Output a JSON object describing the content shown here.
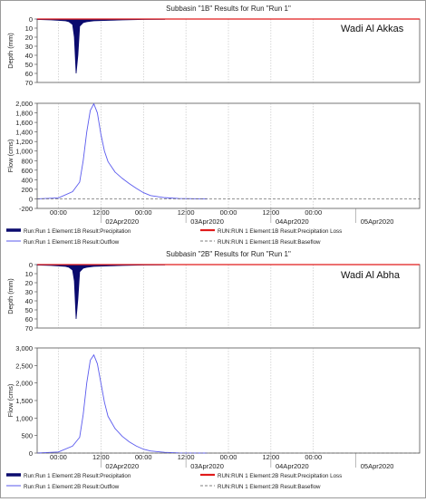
{
  "chart_data": [
    {
      "type": "line",
      "title": "Subbasin \"1B\" Results for Run \"Run 1\"",
      "annotation": "Wadi Al Akkas",
      "top_panel": {
        "ylabel": "Depth (mm)",
        "ylim": [
          0,
          70
        ],
        "inverted": true,
        "ticks": [
          "0",
          "10",
          "20",
          "30",
          "40",
          "50",
          "60",
          "70"
        ]
      },
      "bottom_panel": {
        "ylabel": "Flow (cms)",
        "ylim": [
          -200,
          2000
        ],
        "ticks": [
          "-200",
          "0",
          "200",
          "400",
          "600",
          "800",
          "1,000",
          "1,200",
          "1,400",
          "1,600",
          "1,800",
          "2,000"
        ]
      },
      "x_ticks_top": [
        "00:00",
        "12:00",
        "00:00",
        "12:00",
        "00:00",
        "12:00",
        "00:00"
      ],
      "x_ticks_bottom": [
        "02Apr2020",
        "03Apr2020",
        "04Apr2020",
        "05Apr2020"
      ],
      "x_unit": "hours since 01Apr2020 18:00",
      "series": [
        {
          "name": "Run:Run 1 Element:1B Result:Precipitation",
          "color": "#0a0a6e",
          "x": [
            0,
            4,
            6,
            8,
            9,
            10,
            10.5,
            11,
            11.5,
            12,
            13,
            14,
            16,
            20,
            24,
            30,
            36
          ],
          "values": [
            0.5,
            1,
            1.5,
            2,
            3,
            6,
            20,
            60,
            40,
            8,
            4,
            3,
            2,
            1.5,
            1,
            0.5,
            0.3
          ]
        },
        {
          "name": "RUN:RUN 1 Element:1B Result:Precipitation Loss",
          "color": "#e01b1b",
          "x": [
            0,
            60,
            108
          ],
          "values": [
            0,
            0,
            0
          ]
        },
        {
          "name": "Run:Run 1 Element:1B Result:Outflow",
          "color": "#5a5aee",
          "x": [
            0,
            6,
            10,
            12,
            13,
            14,
            15,
            16,
            17,
            18,
            19,
            20,
            22,
            24,
            26,
            28,
            30,
            32,
            36,
            40,
            44,
            48
          ],
          "values": [
            0,
            20,
            150,
            350,
            800,
            1400,
            1850,
            1990,
            1800,
            1350,
            1000,
            780,
            560,
            430,
            320,
            220,
            130,
            70,
            25,
            8,
            3,
            0
          ]
        },
        {
          "name": "RUN:RUN 1 Element:1B Result:Baseflow",
          "color": "#555555",
          "x": [
            0,
            108
          ],
          "values": [
            0,
            0
          ]
        }
      ]
    },
    {
      "type": "line",
      "title": "Subbasin \"2B\" Results for Run \"Run 1\"",
      "annotation": "Wadi Al Abha",
      "top_panel": {
        "ylabel": "Depth (mm)",
        "ylim": [
          0,
          70
        ],
        "inverted": true,
        "ticks": [
          "0",
          "10",
          "20",
          "30",
          "40",
          "50",
          "60",
          "70"
        ]
      },
      "bottom_panel": {
        "ylabel": "Flow (cms)",
        "ylim": [
          0,
          3000
        ],
        "ticks": [
          "0",
          "500",
          "1,000",
          "1,500",
          "2,000",
          "2,500",
          "3,000"
        ]
      },
      "x_ticks_top": [
        "00:00",
        "12:00",
        "00:00",
        "12:00",
        "00:00",
        "12:00",
        "00:00"
      ],
      "x_ticks_bottom": [
        "02Apr2020",
        "03Apr2020",
        "04Apr2020",
        "05Apr2020"
      ],
      "x_unit": "hours since 01Apr2020 18:00",
      "series": [
        {
          "name": "Run:Run 1 Element:2B Result:Precipitation",
          "color": "#0a0a6e",
          "x": [
            0,
            4,
            6,
            8,
            9,
            10,
            10.5,
            11,
            11.5,
            12,
            13,
            14,
            16,
            20,
            24,
            30,
            36
          ],
          "values": [
            0.5,
            1,
            1.5,
            2,
            3,
            6,
            18,
            60,
            38,
            8,
            4,
            3,
            2,
            1.5,
            1,
            0.5,
            0.3
          ]
        },
        {
          "name": "RUN:RUN 1 Element:2B Result:Precipitation Loss",
          "color": "#e01b1b",
          "x": [
            0,
            60,
            108
          ],
          "values": [
            0,
            0,
            0
          ]
        },
        {
          "name": "Run:Run 1 Element:2B Result:Outflow",
          "color": "#5a5aee",
          "x": [
            0,
            6,
            10,
            12,
            13,
            14,
            15,
            16,
            17,
            18,
            19,
            20,
            22,
            24,
            26,
            28,
            30,
            32,
            36,
            40,
            44,
            48
          ],
          "values": [
            0,
            30,
            200,
            450,
            1100,
            2000,
            2650,
            2800,
            2550,
            2000,
            1450,
            1050,
            700,
            480,
            320,
            200,
            110,
            60,
            20,
            6,
            2,
            0
          ]
        },
        {
          "name": "RUN:RUN 1 Element:2B Result:Baseflow",
          "color": "#555555",
          "x": [
            0,
            108
          ],
          "values": [
            0,
            0
          ]
        }
      ]
    }
  ]
}
